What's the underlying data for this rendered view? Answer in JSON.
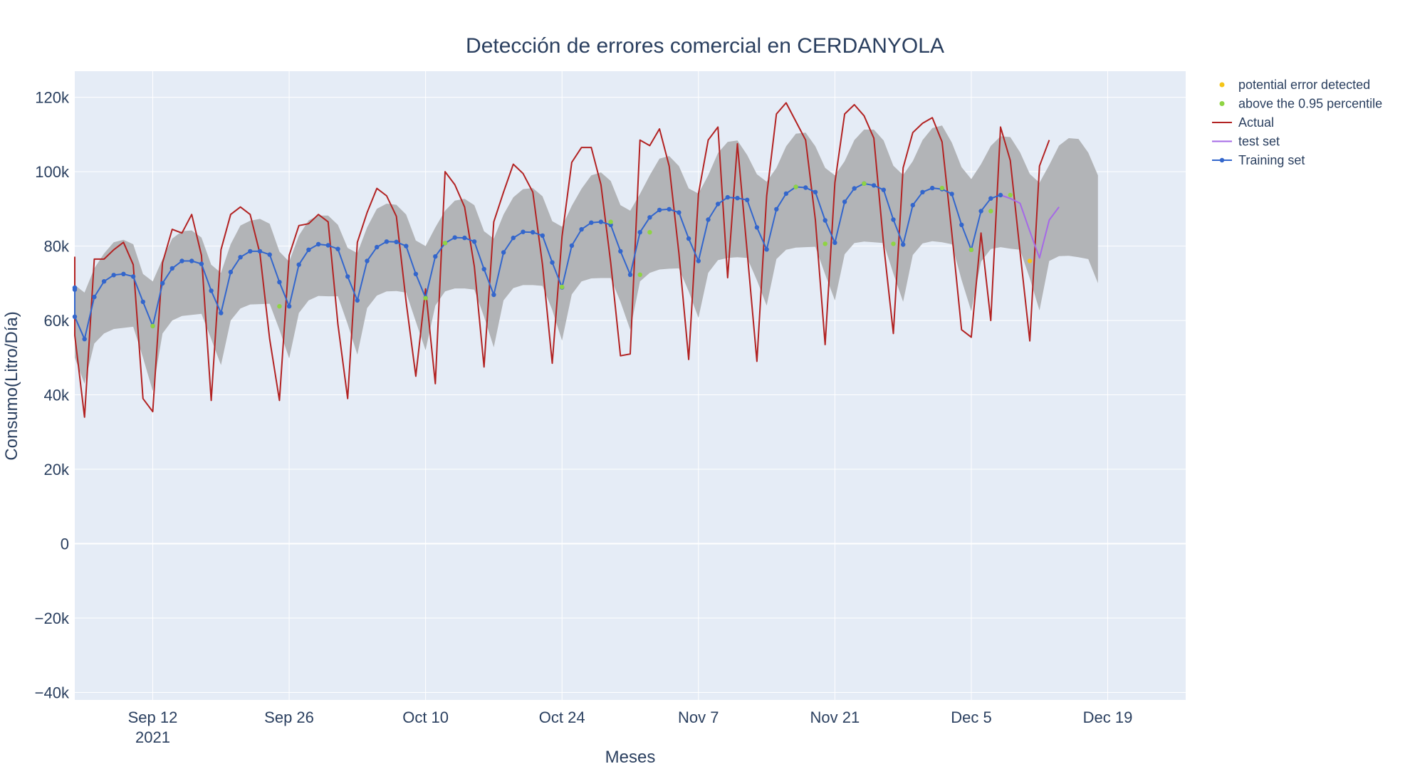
{
  "chart_data": {
    "type": "line",
    "title": "Detección de errores comercial en CERDANYOLA",
    "xlabel": "Meses",
    "ylabel": "Consumo(Litro/Día)",
    "x_range": [
      "2021-09-04",
      "2021-12-27"
    ],
    "ylim": [
      -42000,
      127000
    ],
    "x_ticks": [
      {
        "date": "2021-09-12",
        "label": "Sep 12",
        "sublabel": "2021"
      },
      {
        "date": "2021-09-26",
        "label": "Sep 26"
      },
      {
        "date": "2021-10-10",
        "label": "Oct 10"
      },
      {
        "date": "2021-10-24",
        "label": "Oct 24"
      },
      {
        "date": "2021-11-07",
        "label": "Nov 7"
      },
      {
        "date": "2021-11-21",
        "label": "Nov 21"
      },
      {
        "date": "2021-12-05",
        "label": "Dec 5"
      },
      {
        "date": "2021-12-19",
        "label": "Dec 19"
      }
    ],
    "y_ticks": [
      {
        "value": -40000,
        "label": "−40k"
      },
      {
        "value": -20000,
        "label": "−20k"
      },
      {
        "value": 0,
        "label": "0"
      },
      {
        "value": 20000,
        "label": "20k"
      },
      {
        "value": 40000,
        "label": "40k"
      },
      {
        "value": 60000,
        "label": "60k"
      },
      {
        "value": 80000,
        "label": "80k"
      },
      {
        "value": 100000,
        "label": "100k"
      },
      {
        "value": 120000,
        "label": "120k"
      }
    ],
    "grid": true,
    "legend_position": "top-right",
    "start_date": "2021-09-01",
    "series": [
      {
        "name": "Actual",
        "type": "line",
        "color": "#b22222",
        "values": [
          72000,
          77000,
          73000,
          56000,
          34000,
          76500,
          76500,
          79000,
          81000,
          75000,
          39000,
          35500,
          75500,
          84500,
          83500,
          88500,
          77500,
          38500,
          79000,
          88500,
          90500,
          88500,
          78000,
          55000,
          38500,
          77500,
          85500,
          86000,
          88500,
          86500,
          59000,
          39000,
          81000,
          89000,
          95500,
          93500,
          88000,
          65000,
          45000,
          68500,
          43000,
          100000,
          96500,
          90500,
          74500,
          47500,
          86500,
          94500,
          102000,
          99500,
          94500,
          75000,
          48500,
          82500,
          102500,
          106500,
          106500,
          96500,
          75500,
          50500,
          51000,
          108500,
          107000,
          111500,
          101500,
          78000,
          49500,
          94000,
          108500,
          112000,
          71500,
          107500,
          78500,
          49000,
          93500,
          115500,
          118500,
          113500,
          108500,
          87000,
          53500,
          97000,
          115500,
          118000,
          115000,
          109000,
          80500,
          56500,
          101000,
          110500,
          113000,
          114500,
          108000,
          83500,
          57500,
          55500,
          83500,
          60000,
          112000,
          103000,
          78500,
          54500,
          101500,
          108500
        ]
      },
      {
        "name": "Training set",
        "type": "line+markers",
        "color": "#3366cc",
        "values": [
          68800,
          68800,
          68300,
          61000,
          55000,
          66300,
          70500,
          72200,
          72500,
          71800,
          65000,
          58500,
          70000,
          74000,
          76000,
          76000,
          75200,
          68000,
          62000,
          73000,
          77000,
          78600,
          78600,
          77700,
          70300,
          63800,
          75000,
          79000,
          80500,
          80200,
          79200,
          71800,
          65400,
          76000,
          79700,
          81200,
          81100,
          80000,
          72500,
          66100,
          77200,
          80800,
          82300,
          82200,
          81200,
          73800,
          66900,
          78300,
          82200,
          83800,
          83700,
          82800,
          75600,
          68900,
          80100,
          84500,
          86300,
          86500,
          85700,
          78600,
          72300,
          83700,
          87700,
          89700,
          89900,
          89000,
          82000,
          76000,
          87100,
          91300,
          93100,
          92900,
          92400,
          85000,
          79100,
          89900,
          94100,
          95900,
          95700,
          94500,
          86900,
          80900,
          91900,
          95500,
          96800,
          96300,
          95100,
          87100,
          80400,
          91000,
          94500,
          95600,
          95300,
          94000,
          85700,
          79000,
          89400,
          92800,
          93700
        ]
      },
      {
        "name": "test set",
        "type": "line",
        "color": "#a569e6",
        "start_index": 98,
        "values": [
          93700,
          92800,
          91500,
          84000,
          76800,
          87000,
          90500
        ]
      }
    ],
    "band": {
      "color": "#b2b4b7",
      "lower": [
        55500,
        55500,
        55700,
        50000,
        43000,
        53800,
        56500,
        57700,
        58000,
        58300,
        50000,
        41000,
        56500,
        60000,
        61200,
        61500,
        61800,
        55000,
        48000,
        60000,
        63200,
        64300,
        64400,
        64500,
        57500,
        49800,
        62000,
        65400,
        66600,
        66500,
        66500,
        59000,
        50800,
        63300,
        66700,
        67800,
        67900,
        67500,
        59700,
        52000,
        64000,
        67800,
        68600,
        68600,
        68300,
        61000,
        52800,
        65400,
        68700,
        69500,
        69500,
        69300,
        62800,
        54600,
        67000,
        70500,
        71300,
        71400,
        71400,
        65000,
        57500,
        70500,
        72800,
        73700,
        73900,
        74000,
        67800,
        60700,
        72800,
        76200,
        76800,
        77000,
        76800,
        70800,
        64000,
        76500,
        79000,
        79600,
        79700,
        79800,
        72400,
        65400,
        77800,
        80800,
        81200,
        81000,
        80800,
        72600,
        65000,
        77600,
        80700,
        81300,
        81000,
        80500,
        70900,
        62500,
        75800,
        79200,
        79700,
        79300,
        79000,
        71300,
        62700,
        76000,
        77300,
        77400,
        77000,
        76500,
        70000
      ],
      "upper": [
        78000,
        78300,
        76000,
        69500,
        67500,
        74000,
        78000,
        81000,
        81700,
        80500,
        72500,
        70500,
        76500,
        82000,
        84000,
        84200,
        82300,
        75000,
        72800,
        80500,
        85500,
        86800,
        87300,
        86000,
        78500,
        75800,
        82800,
        86900,
        88200,
        88200,
        85700,
        79500,
        78100,
        85000,
        90000,
        91400,
        91100,
        88500,
        81500,
        80000,
        85000,
        89500,
        92200,
        92700,
        91000,
        84000,
        82000,
        88500,
        93100,
        95300,
        95600,
        93400,
        86700,
        85200,
        90800,
        95400,
        99000,
        99800,
        97500,
        91000,
        89500,
        94000,
        99000,
        103500,
        104200,
        101500,
        95500,
        94100,
        99000,
        105000,
        108000,
        108400,
        104500,
        99300,
        97300,
        101000,
        106800,
        110200,
        110500,
        106800,
        101000,
        99000,
        102800,
        108500,
        111300,
        111300,
        108400,
        101600,
        99100,
        102800,
        108500,
        111700,
        112400,
        107800,
        101200,
        98000,
        102000,
        106900,
        109500,
        109300,
        105200,
        99400,
        97000,
        101800,
        107000,
        109000,
        108800,
        105100,
        99000
      ]
    },
    "markers": [
      {
        "name": "potential error detected",
        "color": "#f5c518",
        "points": [
          [
            101,
            76000
          ]
        ]
      },
      {
        "name": "above the 0.95 percentile",
        "color": "#8fd444",
        "points": [
          [
            11,
            58500
          ],
          [
            24,
            63800
          ],
          [
            39,
            66000
          ],
          [
            41,
            80800
          ],
          [
            53,
            69000
          ],
          [
            58,
            86500
          ],
          [
            61,
            72300
          ],
          [
            62,
            83700
          ],
          [
            77,
            95900
          ],
          [
            80,
            80600
          ],
          [
            84,
            96800
          ],
          [
            87,
            80600
          ],
          [
            92,
            95600
          ],
          [
            95,
            79000
          ],
          [
            97,
            89400
          ],
          [
            99,
            93700
          ]
        ]
      }
    ]
  }
}
